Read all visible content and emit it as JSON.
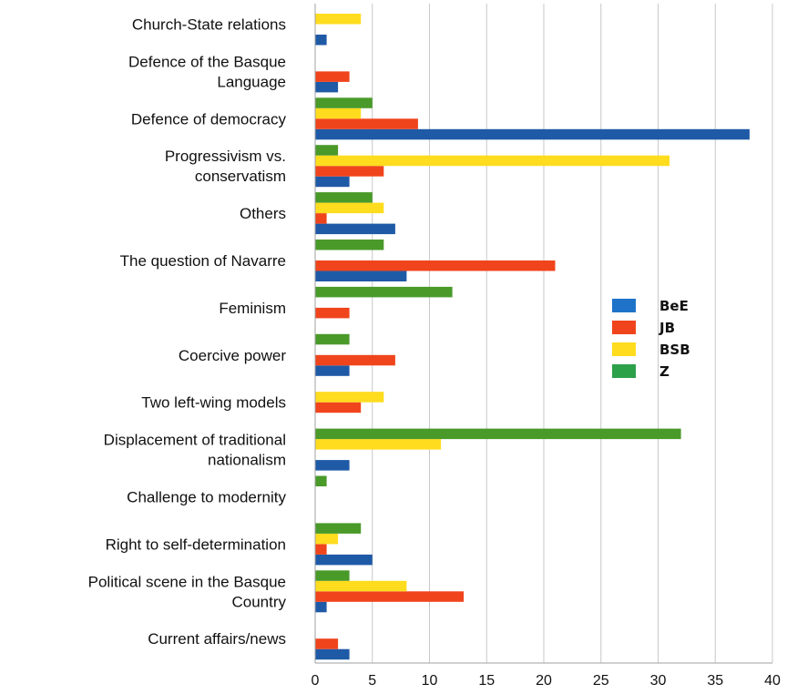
{
  "chart_data": {
    "type": "bar",
    "orientation": "horizontal",
    "categories": [
      "Church-State relations",
      "Defence of the Basque Language",
      "Defence of democracy",
      "Progressivism vs. conservatism",
      "Others",
      "The question of Navarre",
      "Feminism",
      "Coercive power",
      "Two left-wing models",
      "Displacement of traditional nationalism",
      "Challenge to modernity",
      "Right to self-determination",
      "Political scene in the Basque Country",
      "Current affairs/news"
    ],
    "category_lines": [
      [
        "Church-State relations"
      ],
      [
        "Defence of the Basque",
        "Language"
      ],
      [
        "Defence of democracy"
      ],
      [
        "Progressivism vs.",
        "conservatism"
      ],
      [
        "Others"
      ],
      [
        "The question of Navarre"
      ],
      [
        "Feminism"
      ],
      [
        "Coercive power"
      ],
      [
        "Two left-wing models"
      ],
      [
        "Displacement of traditional",
        "nationalism"
      ],
      [
        "Challenge to modernity"
      ],
      [
        "Right to self-determination"
      ],
      [
        "Political scene in the Basque",
        "Country"
      ],
      [
        "Current affairs/news"
      ]
    ],
    "series": [
      {
        "name": "BeE",
        "color": "#1f5aa6",
        "values": [
          1,
          2,
          38,
          3,
          7,
          8,
          0,
          3,
          0,
          3,
          0,
          5,
          1,
          3
        ]
      },
      {
        "name": "JB",
        "color": "#f0441c",
        "values": [
          0,
          3,
          9,
          6,
          1,
          21,
          3,
          7,
          4,
          0,
          0,
          1,
          13,
          2
        ]
      },
      {
        "name": "BSB",
        "color": "#ffdc1e",
        "values": [
          4,
          0,
          4,
          31,
          6,
          0,
          0,
          0,
          6,
          11,
          0,
          2,
          8,
          0
        ]
      },
      {
        "name": "Z",
        "color": "#4a9a2a",
        "values": [
          0,
          0,
          5,
          2,
          5,
          6,
          12,
          3,
          0,
          32,
          1,
          4,
          3,
          0
        ]
      }
    ],
    "legend_colors": {
      "BeE": "#1e73c8",
      "JB": "#f0441c",
      "BSB": "#ffdc1e",
      "Z": "#2da04a"
    },
    "xlim": [
      0,
      40
    ],
    "xticks": [
      0,
      5,
      10,
      15,
      20,
      25,
      30,
      35,
      40
    ],
    "grid": "vertical",
    "legend_position": "right",
    "title": "",
    "xlabel": "",
    "ylabel": ""
  }
}
